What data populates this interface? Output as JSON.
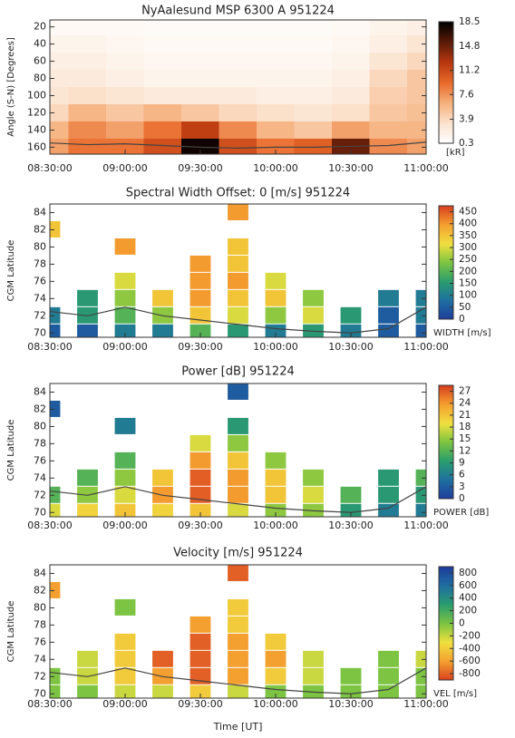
{
  "chart_data": [
    {
      "type": "heatmap",
      "title": "NyAalesund MSP 6300 A 951224",
      "ylabel": "Angle (S-N) [Degrees]",
      "colorbar_label": "[kR]",
      "x": [
        8.5,
        8.75,
        9,
        9.25,
        9.5,
        9.75,
        10,
        10.25,
        10.5,
        10.75,
        11
      ],
      "y": [
        20,
        40,
        60,
        80,
        100,
        120,
        140,
        160
      ],
      "z": [
        [
          1,
          1,
          1,
          0.8,
          0.8,
          0.8,
          0.8,
          0.8,
          1,
          1.5,
          2
        ],
        [
          1.5,
          1.5,
          1.2,
          1,
          1,
          1,
          1,
          1,
          1.2,
          2,
          3
        ],
        [
          2,
          2,
          1.5,
          1.2,
          1.2,
          1.2,
          1.2,
          1.2,
          1.5,
          3,
          4
        ],
        [
          2.5,
          2.5,
          2,
          1.5,
          1.5,
          1.5,
          1.5,
          1.5,
          2,
          4,
          5
        ],
        [
          3,
          3.5,
          3,
          2.5,
          2.5,
          2.5,
          2,
          2,
          2.5,
          4.5,
          5
        ],
        [
          4,
          6,
          5,
          6,
          5,
          4,
          3.5,
          3,
          3.5,
          5,
          5.5
        ],
        [
          6,
          8,
          7,
          9,
          12,
          8,
          6,
          5,
          7,
          6,
          6
        ],
        [
          7,
          9,
          9,
          11,
          18,
          11,
          9,
          10,
          15,
          8,
          7
        ]
      ],
      "line": [
        155,
        157,
        156,
        158,
        160,
        161,
        160,
        160,
        159,
        158,
        154
      ],
      "xlim": [
        8.5,
        11
      ],
      "ylim": [
        168,
        12
      ],
      "xticks": [
        {
          "value": 8.5,
          "label": "08:30:00"
        },
        {
          "value": 9,
          "label": "09:00:00"
        },
        {
          "value": 9.5,
          "label": "09:30:00"
        },
        {
          "value": 10,
          "label": "10:00:00"
        },
        {
          "value": 10.5,
          "label": "10:30:00"
        },
        {
          "value": 11,
          "label": "11:00:00"
        }
      ],
      "yticks": [
        20,
        40,
        60,
        80,
        100,
        120,
        140,
        160
      ],
      "zlim": [
        0.3,
        18.5
      ],
      "zticks": [
        18.5,
        14.8,
        11.2,
        7.6,
        3.9,
        0.3
      ],
      "colors": [
        "#ffffff",
        "#fbe3cf",
        "#f5b07c",
        "#e86a2a",
        "#b8380f",
        "#5a1a08",
        "#000000"
      ]
    },
    {
      "type": "heatmap",
      "title": "Spectral Width Offset: 0 [m/s] 951224",
      "ylabel": "CGM Latitude",
      "colorbar_label": "WIDTH [m/s]",
      "x": [
        8.5,
        8.75,
        9,
        9.25,
        9.5,
        9.75,
        10,
        10.25,
        10.5,
        10.75,
        11
      ],
      "y": [
        70,
        72,
        74,
        76,
        78,
        80,
        82,
        84
      ],
      "z": [
        [
          50,
          50,
          100,
          100,
          200,
          150,
          100,
          150,
          100,
          50,
          50
        ],
        [
          100,
          150,
          200,
          250,
          350,
          300,
          250,
          300,
          150,
          50,
          100
        ],
        [
          null,
          150,
          250,
          350,
          400,
          350,
          350,
          250,
          null,
          100,
          100
        ],
        [
          null,
          null,
          300,
          null,
          400,
          400,
          300,
          null,
          null,
          null,
          null
        ],
        [
          null,
          null,
          null,
          null,
          400,
          350,
          null,
          null,
          null,
          null,
          null
        ],
        [
          null,
          null,
          400,
          null,
          null,
          350,
          null,
          null,
          null,
          null,
          null
        ],
        [
          350,
          null,
          null,
          null,
          null,
          null,
          null,
          null,
          null,
          null,
          null
        ],
        [
          null,
          null,
          null,
          null,
          null,
          400,
          null,
          null,
          null,
          null,
          null
        ]
      ],
      "line": [
        72.5,
        72,
        73,
        72,
        71.5,
        71,
        70.5,
        70.2,
        70,
        70.5,
        73
      ],
      "xlim": [
        8.5,
        11
      ],
      "ylim": [
        69.5,
        85
      ],
      "xticks": [
        {
          "value": 8.5,
          "label": "08:30:00"
        },
        {
          "value": 9,
          "label": "09:00:00"
        },
        {
          "value": 9.5,
          "label": "09:30:00"
        },
        {
          "value": 10,
          "label": "10:00:00"
        },
        {
          "value": 10.5,
          "label": "10:30:00"
        },
        {
          "value": 11,
          "label": "11:00:00"
        }
      ],
      "yticks": [
        70,
        72,
        74,
        76,
        78,
        80,
        82,
        84
      ],
      "zlim": [
        0,
        475
      ],
      "zticks": [
        450,
        400,
        350,
        300,
        250,
        200,
        150,
        100,
        50,
        0
      ],
      "colors": [
        "#1f3c9c",
        "#1e6fa0",
        "#2a9d6e",
        "#7cc441",
        "#f0e040",
        "#f4a030",
        "#d9401f"
      ]
    },
    {
      "type": "heatmap",
      "title": "Power [dB] 951224",
      "ylabel": "CGM Latitude",
      "colorbar_label": "POWER [dB]",
      "x": [
        8.5,
        8.75,
        9,
        9.25,
        9.5,
        9.75,
        10,
        10.25,
        10.5,
        10.75,
        11
      ],
      "y": [
        70,
        72,
        74,
        76,
        78,
        80,
        82,
        84
      ],
      "z": [
        [
          18,
          20,
          21,
          20,
          21,
          18,
          15,
          15,
          9,
          6,
          6
        ],
        [
          12,
          15,
          18,
          24,
          27,
          24,
          21,
          18,
          12,
          9,
          9
        ],
        [
          null,
          12,
          15,
          21,
          27,
          24,
          21,
          15,
          null,
          9,
          12
        ],
        [
          null,
          null,
          12,
          null,
          24,
          21,
          15,
          null,
          null,
          null,
          null
        ],
        [
          null,
          null,
          null,
          null,
          18,
          15,
          null,
          null,
          null,
          null,
          null
        ],
        [
          null,
          null,
          6,
          null,
          null,
          9,
          null,
          null,
          null,
          null,
          null
        ],
        [
          3,
          null,
          null,
          null,
          null,
          null,
          null,
          null,
          null,
          null,
          null
        ],
        [
          null,
          null,
          null,
          null,
          null,
          3,
          null,
          null,
          null,
          null,
          null
        ]
      ],
      "line": [
        72.5,
        72,
        73,
        72,
        71.5,
        71,
        70.5,
        70.2,
        70,
        70.5,
        73
      ],
      "xlim": [
        8.5,
        11
      ],
      "ylim": [
        69.5,
        85
      ],
      "xticks": [
        {
          "value": 8.5,
          "label": "08:30:00"
        },
        {
          "value": 9,
          "label": "09:00:00"
        },
        {
          "value": 9.5,
          "label": "09:30:00"
        },
        {
          "value": 10,
          "label": "10:00:00"
        },
        {
          "value": 10.5,
          "label": "10:30:00"
        },
        {
          "value": 11,
          "label": "11:00:00"
        }
      ],
      "yticks": [
        70,
        72,
        74,
        76,
        78,
        80,
        82,
        84
      ],
      "zlim": [
        0,
        28.5
      ],
      "zticks": [
        27,
        24,
        21,
        18,
        15,
        12,
        9,
        6,
        3,
        0
      ],
      "colors": [
        "#1f3c9c",
        "#1e6fa0",
        "#2a9d6e",
        "#7cc441",
        "#f0e040",
        "#f4a030",
        "#d9401f"
      ]
    },
    {
      "type": "heatmap",
      "title": "Velocity [m/s] 951224",
      "ylabel": "CGM Latitude",
      "colorbar_label": "VEL [m/s]",
      "xlabel": "Time [UT]",
      "x": [
        8.5,
        8.75,
        9,
        9.25,
        9.5,
        9.75,
        10,
        10.25,
        10.5,
        10.75,
        11
      ],
      "y": [
        70,
        72,
        74,
        76,
        78,
        80,
        82,
        84
      ],
      "z": [
        [
          0,
          0,
          -200,
          -200,
          -400,
          -200,
          0,
          0,
          0,
          0,
          0
        ],
        [
          0,
          -200,
          -400,
          -600,
          -800,
          -600,
          -400,
          -200,
          0,
          0,
          0
        ],
        [
          null,
          -200,
          -400,
          -800,
          -800,
          -600,
          -600,
          -200,
          null,
          0,
          -200
        ],
        [
          null,
          null,
          -400,
          null,
          -800,
          -600,
          -400,
          null,
          null,
          null,
          null
        ],
        [
          null,
          null,
          null,
          null,
          -600,
          -400,
          null,
          null,
          null,
          null,
          null
        ],
        [
          null,
          null,
          0,
          null,
          null,
          -400,
          null,
          null,
          null,
          null,
          null
        ],
        [
          -600,
          null,
          null,
          null,
          null,
          null,
          null,
          null,
          null,
          null,
          null
        ],
        [
          null,
          null,
          null,
          null,
          null,
          -800,
          null,
          null,
          null,
          null,
          null
        ]
      ],
      "line": [
        72.5,
        72,
        73,
        72,
        71.5,
        71,
        70.5,
        70.2,
        70,
        70.5,
        73
      ],
      "xlim": [
        8.5,
        11
      ],
      "ylim": [
        69.5,
        85
      ],
      "xticks": [
        {
          "value": 8.5,
          "label": "08:30:00"
        },
        {
          "value": 9,
          "label": "09:00:00"
        },
        {
          "value": 9.5,
          "label": "09:30:00"
        },
        {
          "value": 10,
          "label": "10:00:00"
        },
        {
          "value": 10.5,
          "label": "10:30:00"
        },
        {
          "value": 11,
          "label": "11:00:00"
        }
      ],
      "yticks": [
        70,
        72,
        74,
        76,
        78,
        80,
        82,
        84
      ],
      "zlim": [
        -900,
        900
      ],
      "zticks": [
        800,
        600,
        400,
        200,
        0,
        -200,
        -400,
        -600,
        -800
      ],
      "colors": [
        "#d9401f",
        "#f4a030",
        "#f0e040",
        "#7cc441",
        "#2a9d6e",
        "#1e6fa0",
        "#1f3c9c"
      ]
    }
  ]
}
